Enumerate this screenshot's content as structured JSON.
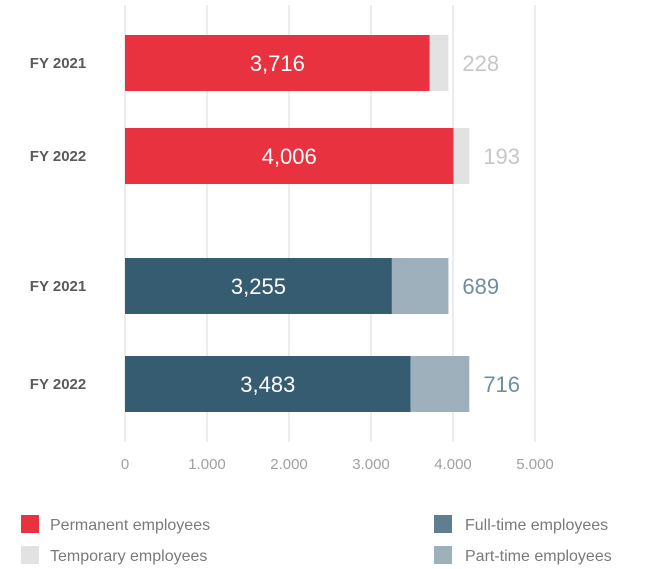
{
  "chart_data": {
    "type": "bar",
    "orientation": "horizontal",
    "stacked": true,
    "groups": [
      {
        "categories": [
          "FY 2021",
          "FY 2022"
        ],
        "series": [
          {
            "name": "Permanent employees",
            "values": [
              3716,
              4006
            ],
            "labels": [
              "3,716",
              "4,006"
            ],
            "color": "#e8323f"
          },
          {
            "name": "Temporary employees",
            "values": [
              228,
              193
            ],
            "labels": [
              "228",
              "193"
            ],
            "color": "#e2e2e2",
            "label_color": "#c7c7c7"
          }
        ]
      },
      {
        "categories": [
          "FY 2021",
          "FY 2022"
        ],
        "series": [
          {
            "name": "Full-time employees",
            "values": [
              3255,
              3483
            ],
            "labels": [
              "3,255",
              "3,483"
            ],
            "color": "#365c72"
          },
          {
            "name": "Part-time employees",
            "values": [
              689,
              716
            ],
            "labels": [
              "689",
              "716"
            ],
            "color": "#9db0bb",
            "label_color": "#6f8f9f"
          }
        ]
      }
    ],
    "xlim": [
      0,
      5000
    ],
    "xticks": [
      0,
      1000,
      2000,
      3000,
      4000,
      5000
    ],
    "xtick_labels": [
      "0",
      "1.000",
      "2.000",
      "3.000",
      "4.000",
      "5.000"
    ],
    "grid": true,
    "legend": {
      "placement": "bottom",
      "items": [
        {
          "name": "Permanent employees",
          "color": "#e8323f"
        },
        {
          "name": "Temporary employees",
          "color": "#e2e2e2"
        },
        {
          "name": "Full-time employees",
          "color": "#5f7e8f"
        },
        {
          "name": "Part-time employees",
          "color": "#9db0bb"
        }
      ]
    }
  }
}
